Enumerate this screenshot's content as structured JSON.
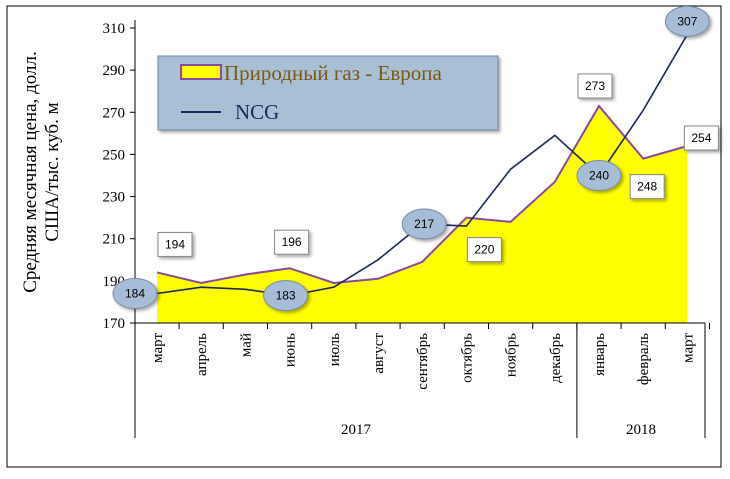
{
  "chart_data": {
    "type": "area",
    "categories": [
      "март",
      "апрель",
      "май",
      "июнь",
      "июль",
      "август",
      "сентябрь",
      "октябрь",
      "ноябрь",
      "декабрь",
      "январь",
      "февраль",
      "март"
    ],
    "year_groups": [
      {
        "label": "2017",
        "start": 0,
        "end": 9
      },
      {
        "label": "2018",
        "start": 10,
        "end": 12
      }
    ],
    "ylabel_line1": "Средняя месячная цена, долл.",
    "ylabel_line2": "США/тыс. куб. м",
    "ylim": [
      170,
      310
    ],
    "yticks": [
      170,
      190,
      210,
      230,
      250,
      270,
      290,
      310
    ],
    "series": [
      {
        "name": "Природный газ - Европа",
        "kind": "area",
        "color": "#FFFF00",
        "stroke": "#8A4A9A",
        "values": [
          194,
          189,
          193,
          196,
          189,
          191,
          199,
          220,
          218,
          237,
          273,
          248,
          254
        ]
      },
      {
        "name": "NCG",
        "kind": "line",
        "color": "#1B2A5A",
        "values": [
          184,
          187,
          186,
          183,
          187,
          200,
          217,
          216,
          243,
          259,
          240,
          271,
          307
        ]
      }
    ],
    "data_labels": [
      {
        "series": 0,
        "index": 0,
        "text": "194",
        "style": "box"
      },
      {
        "series": 0,
        "index": 3,
        "text": "196",
        "style": "box"
      },
      {
        "series": 0,
        "index": 7,
        "text": "220",
        "style": "box"
      },
      {
        "series": 0,
        "index": 10,
        "text": "273",
        "style": "box"
      },
      {
        "series": 0,
        "index": 11,
        "text": "248",
        "style": "box"
      },
      {
        "series": 0,
        "index": 12,
        "text": "254",
        "style": "box"
      },
      {
        "series": 1,
        "index": 0,
        "text": "184",
        "style": "oval"
      },
      {
        "series": 1,
        "index": 3,
        "text": "183",
        "style": "oval"
      },
      {
        "series": 1,
        "index": 6,
        "text": "217",
        "style": "oval"
      },
      {
        "series": 1,
        "index": 10,
        "text": "240",
        "style": "oval"
      },
      {
        "series": 1,
        "index": 12,
        "text": "307",
        "style": "oval"
      }
    ],
    "legend": {
      "placement": "top-left"
    },
    "colors": {
      "legend_bg": "#A9BFD6",
      "oval_fill": "#A7BCD6",
      "oval_stroke": "#7A8AA6",
      "box_fill": "#ffffff"
    }
  }
}
